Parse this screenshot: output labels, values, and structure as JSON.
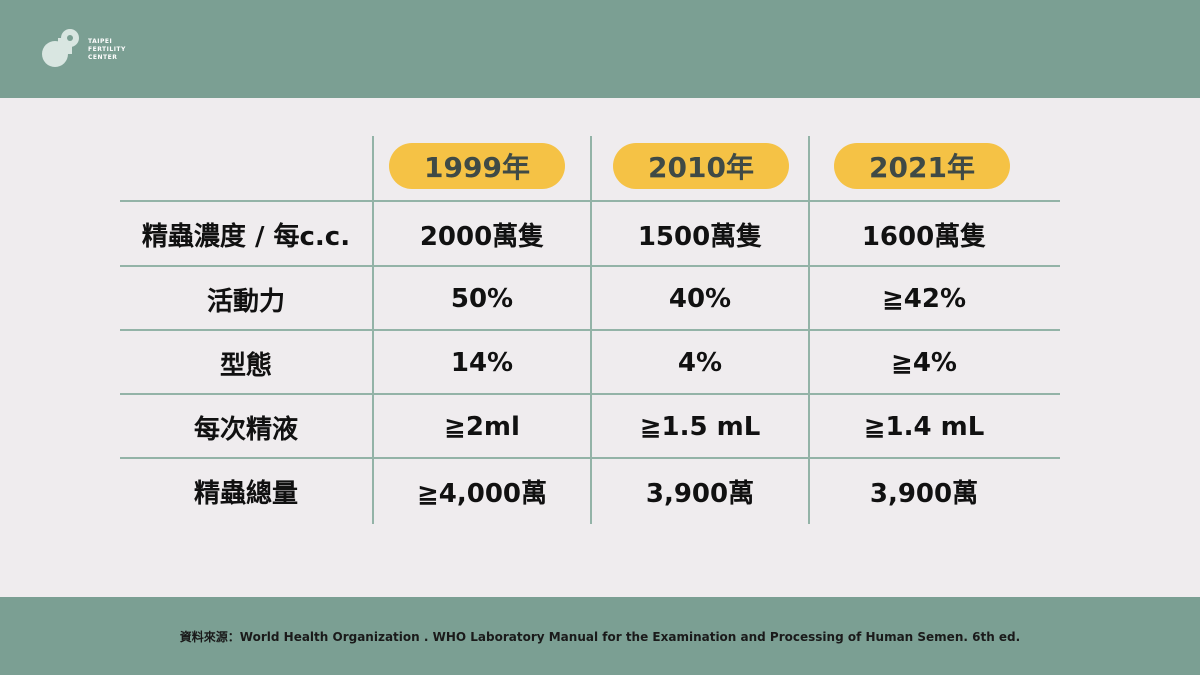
{
  "brand": {
    "line1": "TAIPEI",
    "line2": "FERTILITY",
    "line3": "CENTER"
  },
  "table": {
    "headers": [
      "1999年",
      "2010年",
      "2021年"
    ],
    "rows": [
      {
        "label": "精蟲濃度 / 每c.c.",
        "values": [
          "2000萬隻",
          "1500萬隻",
          "1600萬隻"
        ]
      },
      {
        "label": "活動力",
        "values": [
          "50%",
          "40%",
          "≧42%"
        ]
      },
      {
        "label": "型態",
        "values": [
          "14%",
          "4%",
          "≧4%"
        ]
      },
      {
        "label": "每次精液",
        "values": [
          "≧2ml",
          "≧1.5 mL",
          "≧1.4 mL"
        ]
      },
      {
        "label": "精蟲總量",
        "values": [
          "≧4,000萬",
          "3,900萬",
          "3,900萬"
        ]
      }
    ]
  },
  "footer": {
    "source": "資料來源：World Health Organization . WHO Laboratory Manual for the Examination and Processing of Human Semen. 6th ed."
  },
  "colors": {
    "band": "#7b9f93",
    "background": "#efecee",
    "pill": "#f5c245",
    "grid": "#93b3a7"
  }
}
